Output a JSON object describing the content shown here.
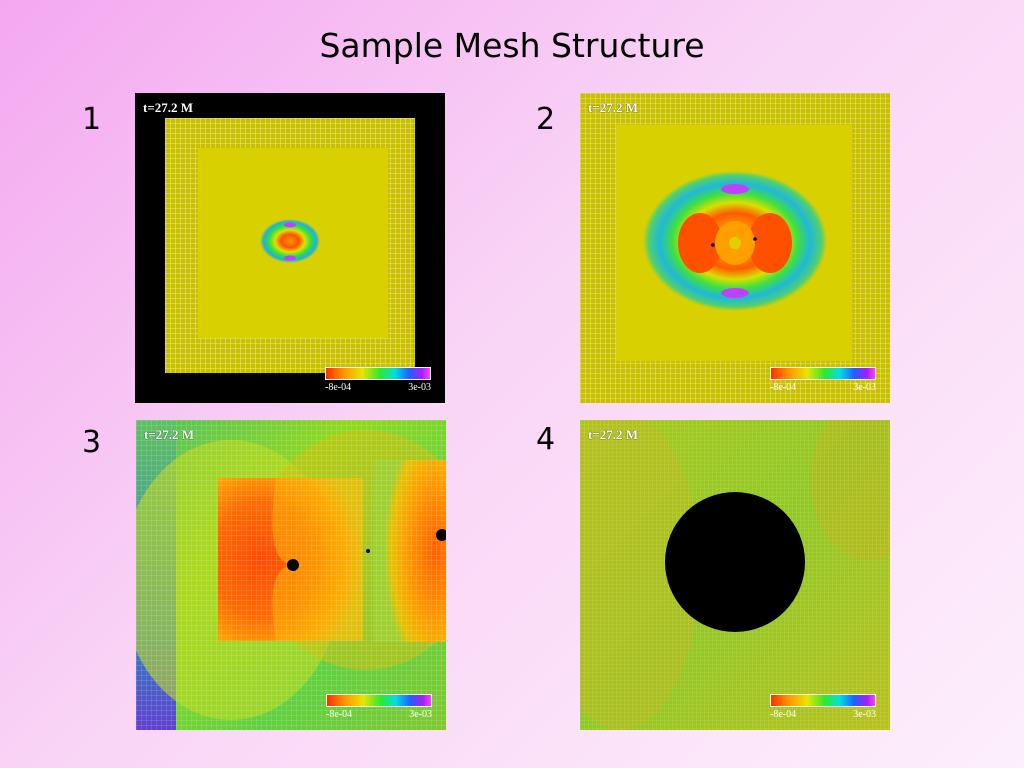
{
  "title": "Sample Mesh Structure",
  "panels": [
    {
      "number": "1",
      "time": "t=27.2 M",
      "legend_min": "-8e-04",
      "legend_max": "3e-03"
    },
    {
      "number": "2",
      "time": "t=27.2 M",
      "legend_min": "-8e-04",
      "legend_max": "3e-03"
    },
    {
      "number": "3",
      "time": "t=27.2 M",
      "legend_min": "-8e-04",
      "legend_max": "3e-03"
    },
    {
      "number": "4",
      "time": "t=27.2 M",
      "legend_min": "-8e-04",
      "legend_max": "3e-03"
    }
  ],
  "colors": {
    "background": "#f4a8f0",
    "field_yellow": "#d9d000",
    "mesh_line": "#f0f0a0",
    "hot": "#ff4a00",
    "green": "#7ed030",
    "cyan": "#1ec8c8",
    "magenta": "#c040ff",
    "black": "#000000"
  }
}
